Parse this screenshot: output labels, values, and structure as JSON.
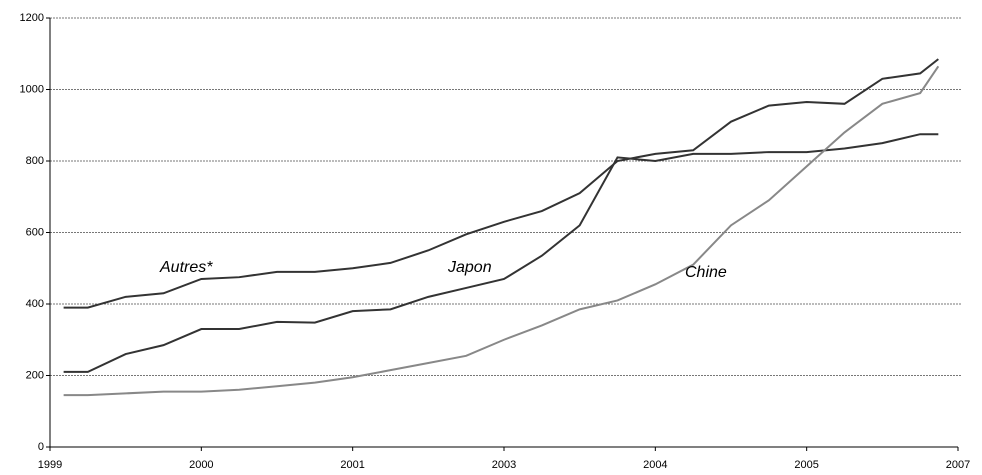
{
  "chart_data": {
    "type": "line",
    "x": [
      1999.09,
      1999.25,
      1999.5,
      1999.75,
      2000,
      2000.25,
      2000.5,
      2000.75,
      2001,
      2001.5,
      2002,
      2002.5,
      2003,
      2003.25,
      2003.5,
      2003.75,
      2004,
      2004.25,
      2004.5,
      2004.75,
      2005,
      2005.5,
      2006,
      2006.5,
      2006.74
    ],
    "series": [
      {
        "name": "Autres*",
        "color": "#333333",
        "values": [
          390,
          390,
          420,
          430,
          470,
          475,
          490,
          490,
          500,
          515,
          550,
          595,
          630,
          660,
          710,
          800,
          820,
          830,
          910,
          955,
          965,
          960,
          1030,
          1045,
          1085
        ]
      },
      {
        "name": "Japon",
        "color": "#333333",
        "values": [
          210,
          210,
          260,
          285,
          330,
          330,
          350,
          348,
          380,
          385,
          420,
          445,
          470,
          535,
          620,
          810,
          800,
          820,
          820,
          825,
          825,
          835,
          850,
          875,
          875
        ]
      },
      {
        "name": "Chine",
        "color": "#888888",
        "values": [
          145,
          145,
          150,
          155,
          155,
          160,
          170,
          180,
          195,
          215,
          235,
          255,
          300,
          340,
          385,
          410,
          455,
          510,
          620,
          690,
          785,
          880,
          960,
          990,
          1065
        ]
      }
    ],
    "xlim": [
      1999,
      2007
    ],
    "xticks": [
      1999,
      2000,
      2001,
      2003,
      2004,
      2005,
      2007
    ],
    "ylim": [
      0,
      1200
    ],
    "yticks": [
      0,
      200,
      400,
      600,
      800,
      1000,
      1200
    ],
    "grid": true
  }
}
